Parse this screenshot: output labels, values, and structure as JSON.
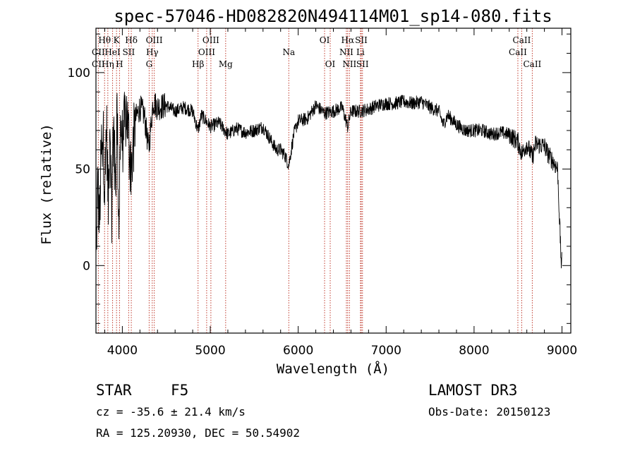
{
  "chart_data": {
    "type": "line",
    "title": "spec-57046-HD082820N494114M01_sp14-080.fits",
    "xlabel": "Wavelength (Å)",
    "ylabel": "Flux (relative)",
    "xlim": [
      3700,
      9100
    ],
    "ylim": [
      -35,
      123
    ],
    "x_ticks": [
      4000,
      5000,
      6000,
      7000,
      8000,
      9000
    ],
    "y_ticks": [
      0,
      50,
      100
    ],
    "x_tick_labels": [
      "4000",
      "5000",
      "6000",
      "7000",
      "8000",
      "9000"
    ],
    "y_tick_labels": [
      "0",
      "50",
      "100"
    ],
    "series": [
      {
        "name": "flux",
        "x": [
          3700,
          3720,
          3740,
          3760,
          3780,
          3800,
          3820,
          3840,
          3860,
          3880,
          3900,
          3920,
          3940,
          3960,
          3980,
          4000,
          4050,
          4100,
          4150,
          4200,
          4250,
          4300,
          4350,
          4400,
          4500,
          4600,
          4700,
          4800,
          4860,
          4900,
          5000,
          5100,
          5200,
          5300,
          5400,
          5500,
          5600,
          5700,
          5750,
          5800,
          5850,
          5893,
          5950,
          6000,
          6100,
          6200,
          6300,
          6400,
          6500,
          6563,
          6600,
          6700,
          6800,
          6900,
          7000,
          7100,
          7200,
          7300,
          7400,
          7500,
          7600,
          7650,
          7700,
          7800,
          7900,
          8000,
          8100,
          8200,
          8300,
          8400,
          8500,
          8542,
          8600,
          8662,
          8700,
          8800,
          8850,
          8900,
          8950,
          8990,
          9000
        ],
        "y": [
          0,
          45,
          20,
          60,
          70,
          40,
          75,
          30,
          80,
          25,
          78,
          40,
          82,
          20,
          74,
          65,
          80,
          50,
          76,
          82,
          78,
          60,
          85,
          82,
          83,
          80,
          82,
          80,
          70,
          78,
          72,
          74,
          68,
          71,
          69,
          70,
          72,
          64,
          60,
          60,
          57,
          52,
          68,
          75,
          76,
          83,
          79,
          80,
          82,
          72,
          80,
          80,
          81,
          83,
          84,
          84,
          85,
          84,
          85,
          82,
          80,
          73,
          78,
          73,
          70,
          70,
          70,
          68,
          69,
          68,
          64,
          58,
          63,
          56,
          63,
          62,
          57,
          54,
          50,
          2,
          2
        ]
      }
    ],
    "line_markers": [
      {
        "label": "CII",
        "wavelength": 3727,
        "row": 3
      },
      {
        "label": "CII",
        "wavelength": 3727,
        "row": 2
      },
      {
        "label": "Hθ",
        "wavelength": 3798,
        "row": 1
      },
      {
        "label": "Hη",
        "wavelength": 3835,
        "row": 3
      },
      {
        "label": "HeI",
        "wavelength": 3889,
        "row": 2
      },
      {
        "label": "K",
        "wavelength": 3934,
        "row": 1
      },
      {
        "label": "H",
        "wavelength": 3968,
        "row": 3
      },
      {
        "label": "SII",
        "wavelength": 4072,
        "row": 2
      },
      {
        "label": "Hδ",
        "wavelength": 4102,
        "row": 1
      },
      {
        "label": "OIII",
        "wavelength": 4363,
        "row": 1
      },
      {
        "label": "Hγ",
        "wavelength": 4340,
        "row": 2
      },
      {
        "label": "G",
        "wavelength": 4305,
        "row": 3
      },
      {
        "label": "Hβ",
        "wavelength": 4861,
        "row": 3
      },
      {
        "label": "OIII",
        "wavelength": 5007,
        "row": 1
      },
      {
        "label": "OIII",
        "wavelength": 4959,
        "row": 2
      },
      {
        "label": "Mg",
        "wavelength": 5175,
        "row": 3
      },
      {
        "label": "Na",
        "wavelength": 5893,
        "row": 2
      },
      {
        "label": "OI",
        "wavelength": 6300,
        "row": 1
      },
      {
        "label": "OI",
        "wavelength": 6364,
        "row": 3
      },
      {
        "label": "Hα",
        "wavelength": 6563,
        "row": 1
      },
      {
        "label": "NII",
        "wavelength": 6548,
        "row": 2
      },
      {
        "label": "NII",
        "wavelength": 6583,
        "row": 3
      },
      {
        "label": "SII",
        "wavelength": 6717,
        "row": 1
      },
      {
        "label": "Li",
        "wavelength": 6708,
        "row": 2
      },
      {
        "label": "SII",
        "wavelength": 6731,
        "row": 3
      },
      {
        "label": "CaII",
        "wavelength": 8542,
        "row": 1
      },
      {
        "label": "CaII",
        "wavelength": 8498,
        "row": 2
      },
      {
        "label": "CaII",
        "wavelength": 8662,
        "row": 3
      }
    ]
  },
  "info": {
    "class": "STAR",
    "subclass": "F5",
    "survey": "LAMOST DR3",
    "cz": "cz = -35.6 ± 21.4 km/s",
    "obs_date": "Obs-Date: 20150123",
    "coords": "RA = 125.20930, DEC =  50.54902"
  }
}
